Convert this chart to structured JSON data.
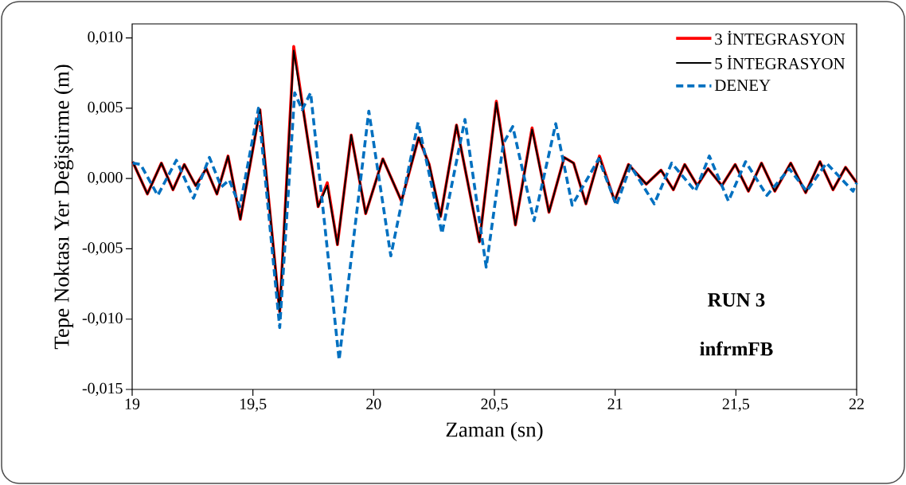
{
  "chart_data": {
    "type": "line",
    "xlabel": "Zaman (sn)",
    "ylabel": "Tepe Noktası Yer Değiştirme (m)",
    "xlim": [
      19,
      22
    ],
    "ylim": [
      -0.015,
      0.011
    ],
    "xticks": [
      19,
      {
        "value": 19.5,
        "label": "19,5"
      },
      20,
      {
        "value": 20.5,
        "label": "20,5"
      },
      21,
      {
        "value": 21.5,
        "label": "21,5"
      },
      22
    ],
    "yticks": [
      {
        "value": -0.015,
        "label": "-0,015"
      },
      {
        "value": -0.01,
        "label": "-0,010"
      },
      {
        "value": -0.005,
        "label": "-0,005"
      },
      {
        "value": 0,
        "label": "0,000"
      },
      {
        "value": 0.005,
        "label": "0,005"
      },
      {
        "value": 0.01,
        "label": "0,010"
      }
    ],
    "grid": false,
    "legend": "top right",
    "marker": "none",
    "annotations": [
      "RUN 3",
      "infrmFB"
    ],
    "series": [
      {
        "name": "3 İNTEGRASYON",
        "color": "#ff0000",
        "line_style": "solid",
        "x": [
          19.002,
          19.063,
          19.121,
          19.169,
          19.216,
          19.263,
          19.307,
          19.351,
          19.397,
          19.448,
          19.529,
          19.611,
          19.669,
          19.726,
          19.77,
          19.808,
          19.85,
          19.907,
          19.967,
          20.038,
          20.115,
          20.186,
          20.23,
          20.277,
          20.343,
          20.438,
          20.508,
          20.587,
          20.656,
          20.726,
          20.789,
          20.828,
          20.879,
          20.935,
          20.998,
          21.055,
          21.129,
          21.19,
          21.241,
          21.288,
          21.34,
          21.385,
          21.442,
          21.497,
          21.552,
          21.606,
          21.661,
          21.727,
          21.789,
          21.848,
          21.902,
          21.954,
          22.0
        ],
        "values": [
          0.0012,
          -0.0011,
          0.0011,
          -0.0008,
          0.001,
          -0.0005,
          0.0007,
          -0.0011,
          0.0016,
          -0.0029,
          0.0049,
          -0.0095,
          0.0094,
          0.0029,
          -0.002,
          -0.0003,
          -0.0047,
          0.0031,
          -0.0025,
          0.0014,
          -0.0016,
          0.0029,
          0.001,
          -0.0027,
          0.0038,
          -0.0045,
          0.0055,
          -0.0033,
          0.0036,
          -0.0024,
          0.0015,
          0.0011,
          -0.0018,
          0.0016,
          -0.0016,
          0.001,
          -0.0004,
          0.0006,
          -0.0008,
          0.001,
          -0.0005,
          0.0007,
          -0.0005,
          0.001,
          -0.0009,
          0.0011,
          -0.0009,
          0.0011,
          -0.001,
          0.0012,
          -0.0008,
          0.0008,
          -0.0003
        ]
      },
      {
        "name": "5 İNTEGRASYON",
        "color": "#000000",
        "line_style": "solid",
        "x": [
          19.002,
          19.063,
          19.121,
          19.169,
          19.216,
          19.263,
          19.307,
          19.351,
          19.397,
          19.448,
          19.529,
          19.611,
          19.669,
          19.726,
          19.77,
          19.808,
          19.85,
          19.907,
          19.967,
          20.038,
          20.115,
          20.186,
          20.23,
          20.277,
          20.343,
          20.438,
          20.508,
          20.587,
          20.656,
          20.726,
          20.789,
          20.828,
          20.879,
          20.935,
          20.998,
          21.055,
          21.129,
          21.19,
          21.241,
          21.288,
          21.34,
          21.385,
          21.442,
          21.497,
          21.552,
          21.606,
          21.661,
          21.727,
          21.789,
          21.848,
          21.902,
          21.954,
          22.0
        ],
        "values": [
          0.0012,
          -0.0011,
          0.0011,
          -0.0008,
          0.001,
          -0.0005,
          0.0007,
          -0.0011,
          0.0016,
          -0.0029,
          0.0049,
          -0.0095,
          0.0091,
          0.0029,
          -0.002,
          -0.0005,
          -0.0047,
          0.0031,
          -0.0025,
          0.0014,
          -0.0016,
          0.0029,
          0.001,
          -0.0027,
          0.0038,
          -0.0045,
          0.0054,
          -0.0033,
          0.0035,
          -0.0024,
          0.0015,
          0.0011,
          -0.0018,
          0.0015,
          -0.0016,
          0.001,
          -0.0004,
          0.0006,
          -0.0008,
          0.001,
          -0.0005,
          0.0007,
          -0.0005,
          0.001,
          -0.0009,
          0.0011,
          -0.0009,
          0.0011,
          -0.001,
          0.0012,
          -0.0008,
          0.0008,
          -0.0003
        ]
      },
      {
        "name": "DENEY",
        "color": "#0070c0",
        "line_style": "dashed",
        "x": [
          19.002,
          19.035,
          19.106,
          19.183,
          19.254,
          19.32,
          19.369,
          19.402,
          19.446,
          19.523,
          19.611,
          19.673,
          19.704,
          19.739,
          19.857,
          19.98,
          20.071,
          20.184,
          20.283,
          20.378,
          20.466,
          20.537,
          20.576,
          20.664,
          20.754,
          20.822,
          20.932,
          21.005,
          21.064,
          21.162,
          21.234,
          21.332,
          21.39,
          21.469,
          21.54,
          21.628,
          21.721,
          21.793,
          21.875,
          21.985,
          22.0
        ],
        "values": [
          0.0011,
          0.001,
          -0.0012,
          0.0013,
          -0.0014,
          0.0015,
          -0.0006,
          -0.0001,
          -0.002,
          0.005,
          -0.0106,
          0.0061,
          0.0049,
          0.0061,
          -0.0129,
          0.0048,
          -0.0055,
          0.004,
          -0.0039,
          0.0042,
          -0.0063,
          0.0025,
          0.0037,
          -0.003,
          0.0039,
          -0.0019,
          0.0014,
          -0.0019,
          0.0009,
          -0.0018,
          0.0011,
          -0.0009,
          0.0016,
          -0.0016,
          0.0012,
          -0.0012,
          0.0007,
          -0.0009,
          0.0011,
          -0.0009,
          -0.0003
        ]
      }
    ]
  }
}
